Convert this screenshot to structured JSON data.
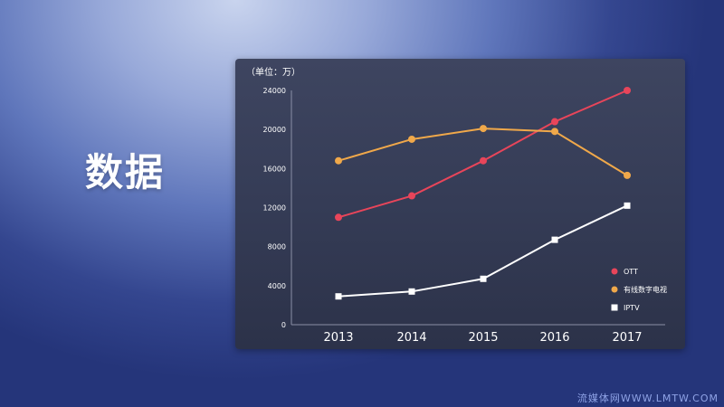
{
  "slide": {
    "title": "数据",
    "watermark": "流媒体网WWW.LMTW.COM"
  },
  "chart_data": {
    "type": "line",
    "unit_label": "（单位：万）",
    "categories": [
      "2013",
      "2014",
      "2015",
      "2016",
      "2017"
    ],
    "ylim": [
      0,
      24000
    ],
    "yticks": [
      "0",
      "4000",
      "8000",
      "12000",
      "16000",
      "20000",
      "24000"
    ],
    "grid": false,
    "legend_position": "right",
    "series": [
      {
        "name": "OTT",
        "values": [
          11000,
          13200,
          16800,
          20800,
          24000
        ],
        "color": "#e8455a",
        "marker": "circle"
      },
      {
        "name": "有线数字电视",
        "values": [
          16800,
          19000,
          20100,
          19800,
          15300
        ],
        "color": "#f0a84a",
        "marker": "circle"
      },
      {
        "name": "IPTV",
        "values": [
          2900,
          3400,
          4700,
          8700,
          12200
        ],
        "color": "#ffffff",
        "marker": "square"
      }
    ]
  }
}
